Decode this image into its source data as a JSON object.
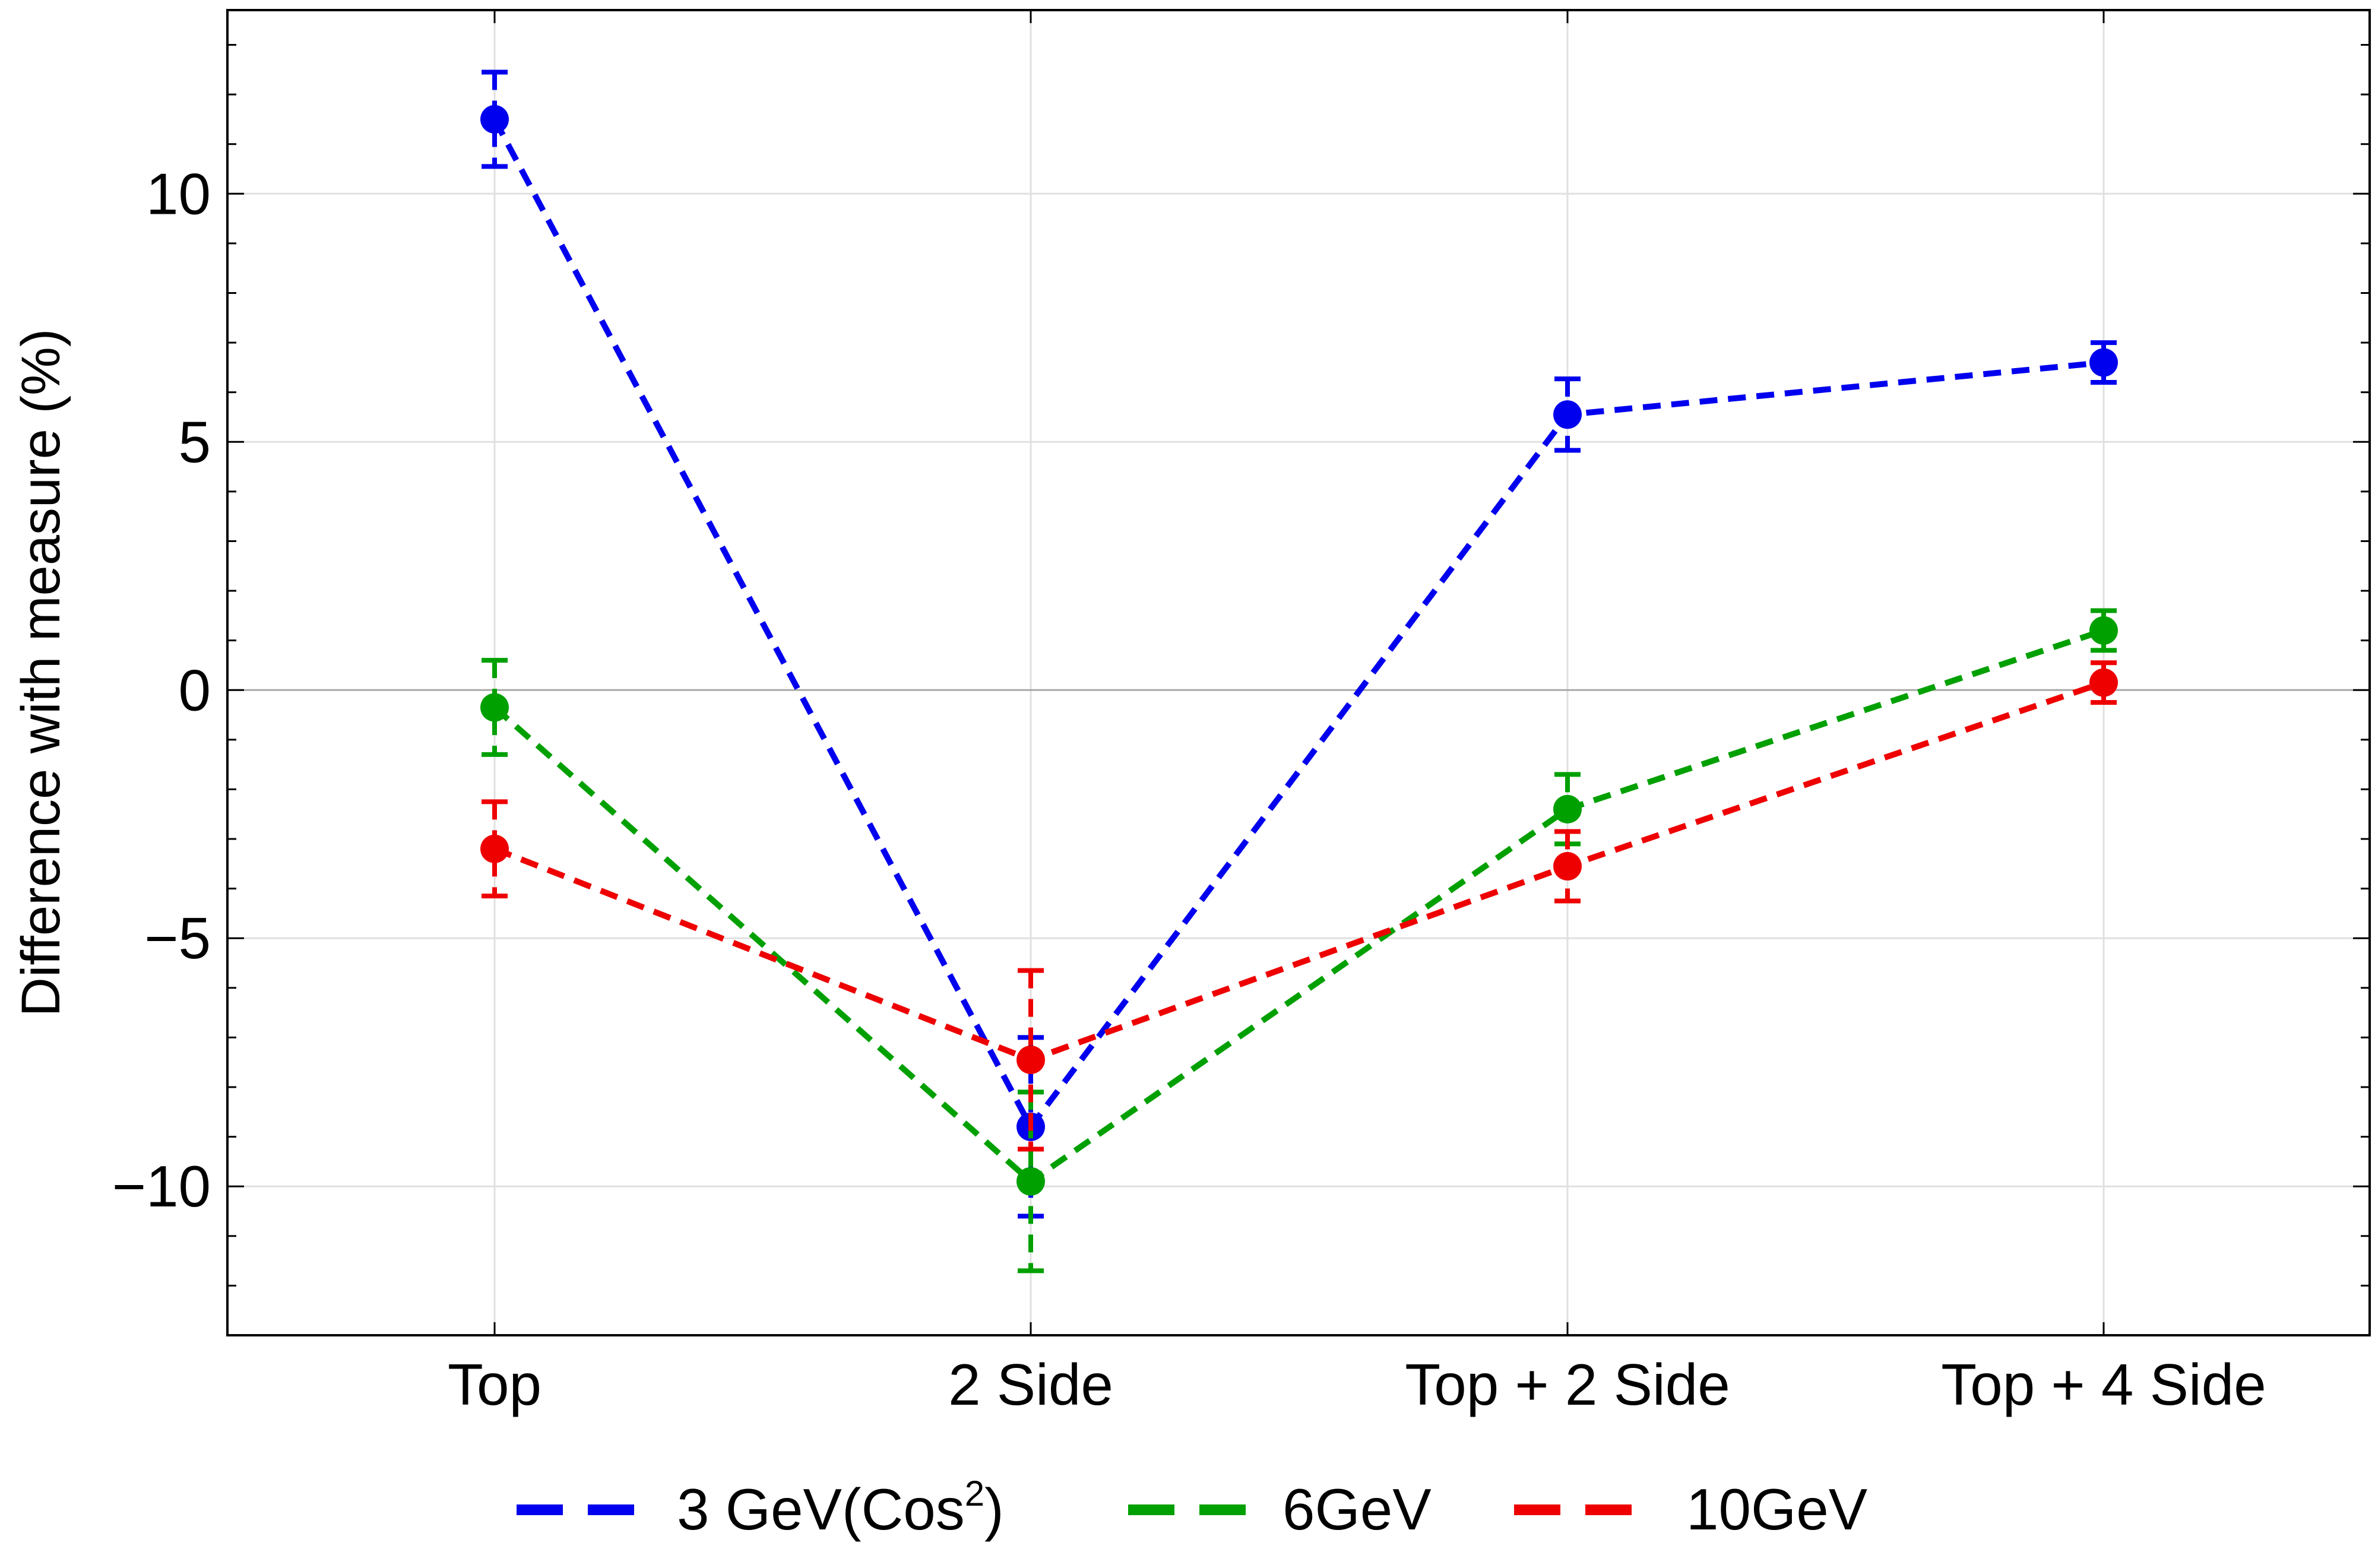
{
  "chart_data": {
    "type": "line",
    "title": "",
    "xlabel": "",
    "ylabel": "Difference with measure (%)",
    "categories": [
      "Top",
      "2 Side",
      "Top + 2 Side",
      "Top + 4 Side"
    ],
    "ylim": [
      -13,
      13.7
    ],
    "yticks": [
      -10,
      -5,
      0,
      5,
      10
    ],
    "ytick_labels": [
      "−10",
      "−5",
      "0",
      "5",
      "10"
    ],
    "grid": true,
    "legend_position": "bottom",
    "series": [
      {
        "name": "3 GeV(Cos²)",
        "legend_main": "3 GeV(Cos",
        "legend_sup": "2",
        "legend_end": ")",
        "color": "#0000ee",
        "values": [
          11.5,
          -8.8,
          5.55,
          6.6
        ],
        "errors": [
          0.95,
          1.8,
          0.72,
          0.4
        ]
      },
      {
        "name": "6GeV",
        "color": "#00a000",
        "values": [
          -0.35,
          -9.9,
          -2.4,
          1.2
        ],
        "errors": [
          0.95,
          1.8,
          0.7,
          0.4
        ]
      },
      {
        "name": "10GeV",
        "color": "#ee0000",
        "values": [
          -3.2,
          -7.45,
          -3.55,
          0.15
        ],
        "errors": [
          0.95,
          1.8,
          0.7,
          0.4
        ]
      }
    ]
  }
}
